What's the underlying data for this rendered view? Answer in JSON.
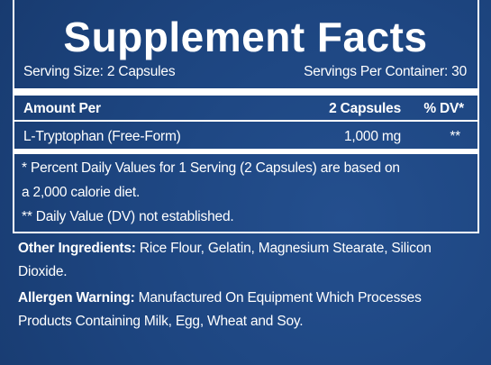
{
  "header": {
    "title": "Supplement Facts"
  },
  "serving": {
    "size": "Serving Size: 2 Capsules",
    "per_container": "Servings Per Container: 30"
  },
  "table": {
    "header": [
      "Amount Per",
      "2 Capsules",
      "% DV*"
    ],
    "rows": [
      [
        "L-Tryptophan (Free-Form)",
        "1,000 mg",
        "**"
      ]
    ]
  },
  "footnotes": [
    "* Percent Daily Values for 1 Serving (2 Capsules) are based on",
    "a 2,000 calorie diet.",
    "** Daily Value (DV) not established."
  ],
  "other_ingredients": {
    "label": "Other Ingredients:",
    "text": "Rice Flour, Gelatin, Magnesium Stearate, Silicon Dioxide."
  },
  "allergen": {
    "label": "Allergen Warning:",
    "text": "Manufactured On Equipment Which Processes Products Containing Milk, Egg, Wheat and Soy."
  }
}
